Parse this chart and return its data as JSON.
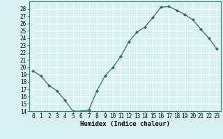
{
  "x": [
    0,
    1,
    2,
    3,
    4,
    5,
    6,
    7,
    8,
    9,
    10,
    11,
    12,
    13,
    14,
    15,
    16,
    17,
    18,
    19,
    20,
    21,
    22,
    23
  ],
  "y": [
    19.5,
    18.8,
    17.5,
    16.8,
    15.5,
    14.0,
    14.0,
    14.2,
    16.8,
    18.8,
    20.0,
    21.5,
    23.5,
    24.8,
    25.5,
    26.8,
    28.2,
    28.3,
    27.8,
    27.2,
    26.5,
    25.2,
    24.0,
    22.5
  ],
  "line_color": "#2d6e6e",
  "marker": "D",
  "marker_size": 2.0,
  "bg_color": "#d8f0f0",
  "grid_color": "#ffffff",
  "xlabel": "Humidex (Indice chaleur)",
  "ylim": [
    14,
    29
  ],
  "xlim": [
    -0.5,
    23.5
  ],
  "yticks": [
    14,
    15,
    16,
    17,
    18,
    19,
    20,
    21,
    22,
    23,
    24,
    25,
    26,
    27,
    28
  ],
  "xticks": [
    0,
    1,
    2,
    3,
    4,
    5,
    6,
    7,
    8,
    9,
    10,
    11,
    12,
    13,
    14,
    15,
    16,
    17,
    18,
    19,
    20,
    21,
    22,
    23
  ],
  "tick_label_size": 5.5,
  "xlabel_size": 6.5,
  "spine_color": "#3a7a7a"
}
